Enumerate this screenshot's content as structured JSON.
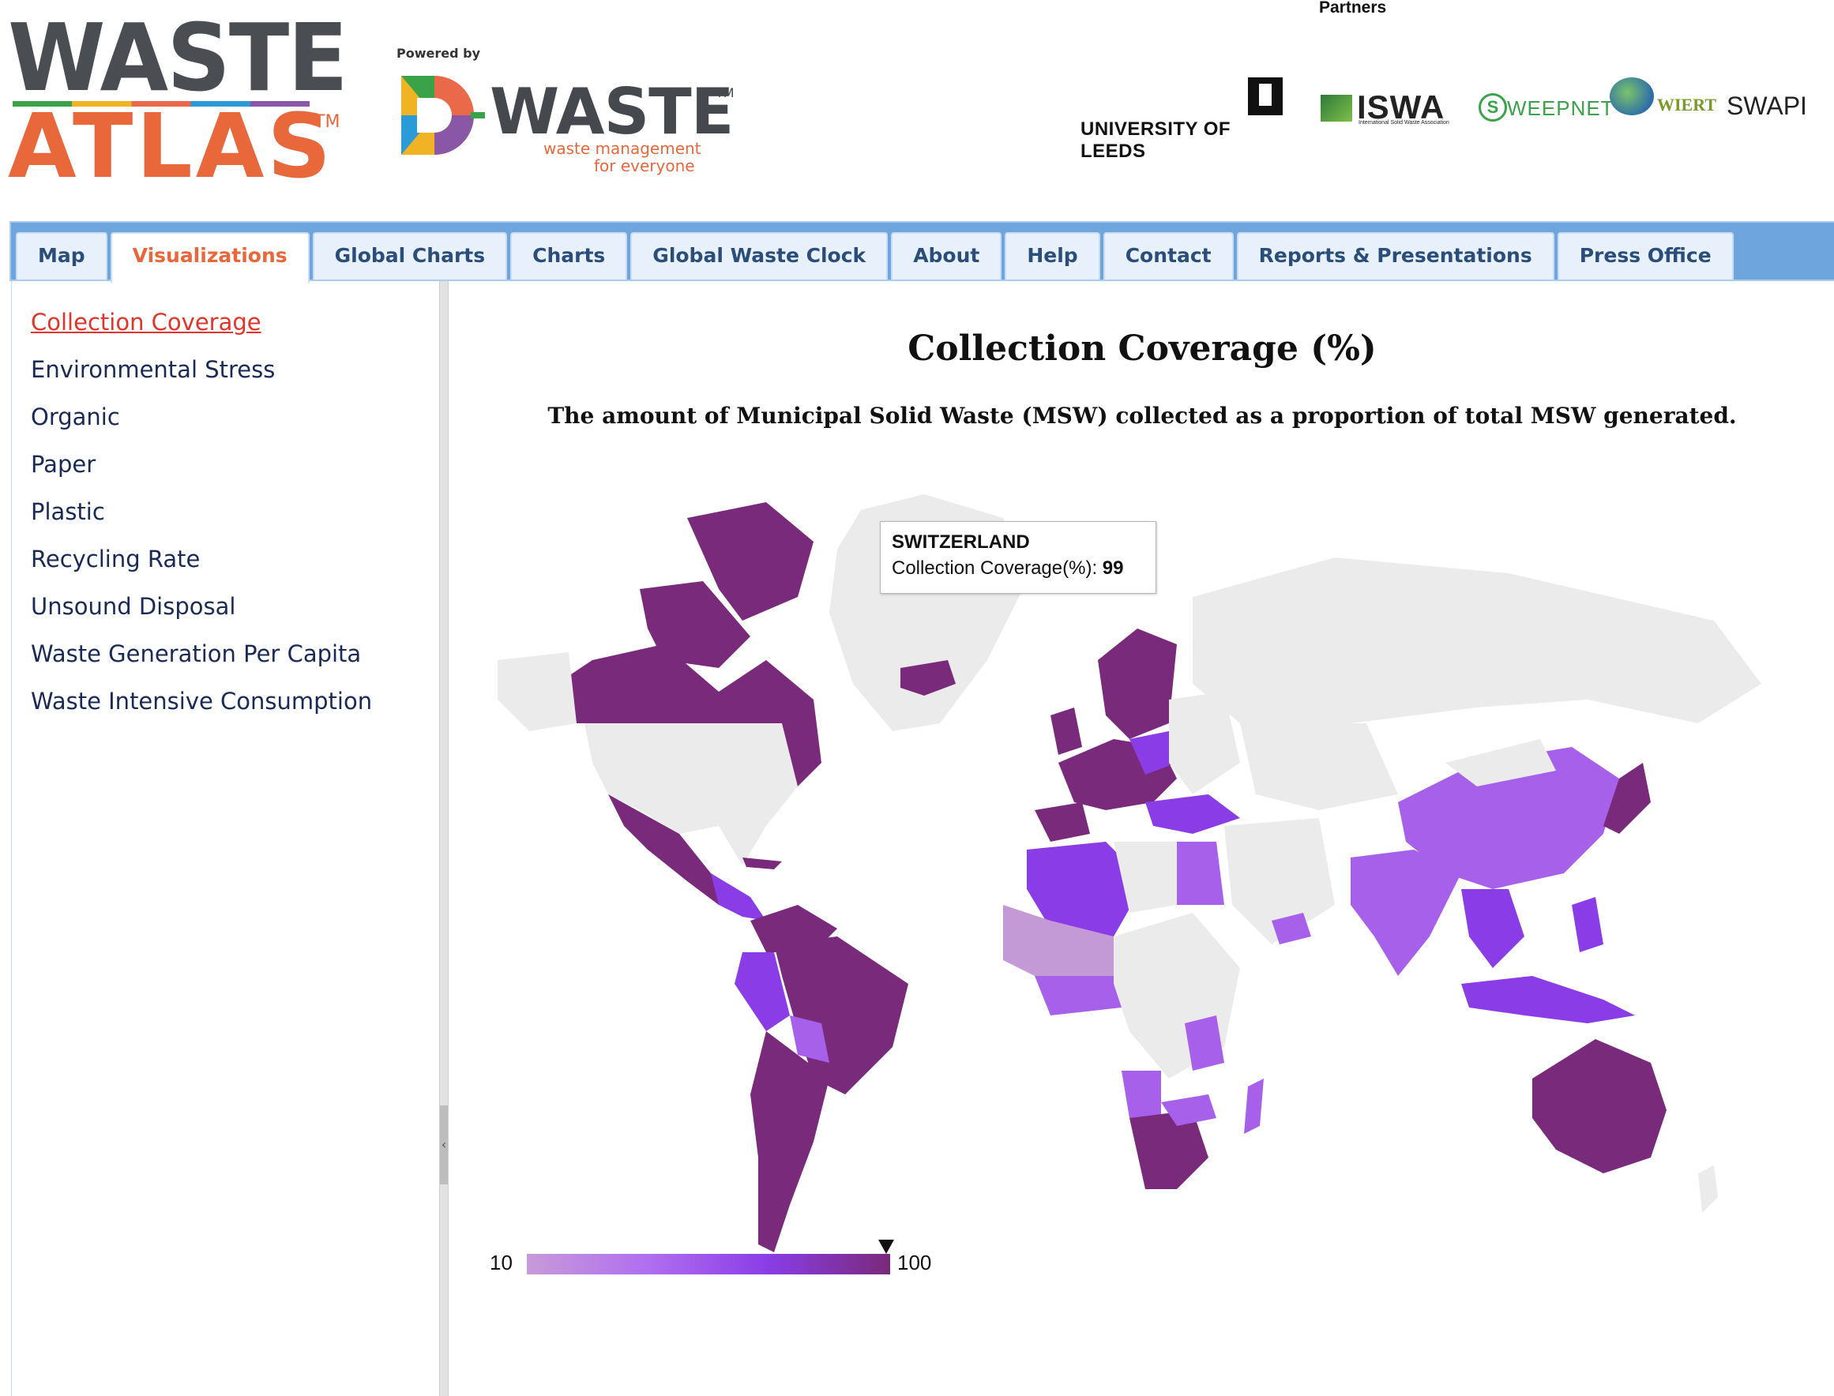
{
  "header": {
    "logo_line1": "WASTE",
    "logo_line2": "ATLAS",
    "logo_tm": "TM",
    "powered_by": "Powered by",
    "dwaste_name": "WASTE",
    "dwaste_tm": "TM",
    "dwaste_tagline1": "waste management",
    "dwaste_tagline2": "for everyone",
    "partners_label": "Partners",
    "partners": {
      "leeds": "UNIVERSITY OF LEEDS",
      "iswa": "ISWA",
      "iswa_sub": "International Solid Waste Association",
      "sweepnet": "WEEPNET",
      "sweepnet_mark": "S",
      "wiert": "WIERT",
      "swapi": "SWAPI"
    }
  },
  "nav": {
    "tabs": [
      {
        "label": "Map"
      },
      {
        "label": "Visualizations",
        "active": true
      },
      {
        "label": "Global Charts"
      },
      {
        "label": "Charts"
      },
      {
        "label": "Global Waste Clock"
      },
      {
        "label": "About"
      },
      {
        "label": "Help"
      },
      {
        "label": "Contact"
      },
      {
        "label": "Reports & Presentations"
      },
      {
        "label": "Press Office"
      }
    ]
  },
  "sidebar": {
    "items": [
      {
        "label": "Collection Coverage",
        "active": true
      },
      {
        "label": "Environmental Stress"
      },
      {
        "label": "Organic"
      },
      {
        "label": "Paper"
      },
      {
        "label": "Plastic"
      },
      {
        "label": "Recycling Rate"
      },
      {
        "label": "Unsound Disposal"
      },
      {
        "label": "Waste Generation Per Capita"
      },
      {
        "label": "Waste Intensive Consumption"
      }
    ],
    "collapse_glyph": "‹"
  },
  "main": {
    "title": "Collection Coverage (%)",
    "subtitle": "The amount of Municipal Solid Waste (MSW) collected as a proportion of total MSW generated."
  },
  "tooltip": {
    "country": "SWITZERLAND",
    "metric_label": "Collection Coverage(%): ",
    "metric_value": "99"
  },
  "legend": {
    "min": "10",
    "max": "100",
    "marker_value": 99,
    "gradient_colors": [
      "#c89ad8",
      "#b06ef0",
      "#8a3de6",
      "#7a2a7a"
    ]
  },
  "colors": {
    "accent_orange": "#e8683c",
    "nav_blue": "#6fa5dd",
    "no_data": "#ebebeb",
    "high": "#7a2a7a",
    "mid_high": "#8a3de6",
    "mid": "#a660ea",
    "low": "#c49ad6"
  }
}
